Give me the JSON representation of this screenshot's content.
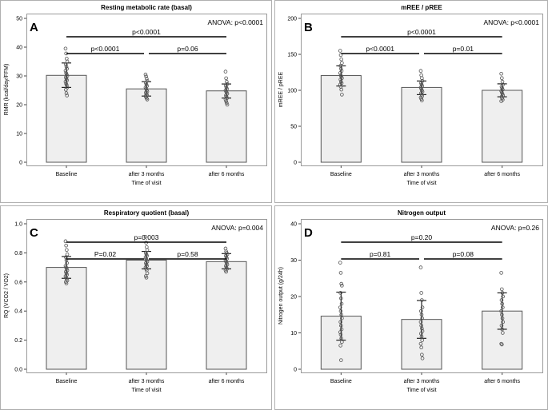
{
  "chart_data": [
    {
      "type": "bar",
      "panel_letter": "A",
      "title": "Resting metabolic rate (basal)",
      "xlabel": "Time of visit",
      "ylabel": "RMR (kcal/day/FFM)",
      "categories": [
        "Baseline",
        "after 3 months",
        "after 6 months"
      ],
      "ylim": [
        0,
        50
      ],
      "yticks": [
        0,
        10,
        20,
        30,
        40,
        50
      ],
      "ytick_labels": [
        "0",
        "10",
        "20",
        "30",
        "40",
        "50"
      ],
      "values": [
        30.2,
        25.5,
        24.8
      ],
      "error": [
        [
          26.0,
          34.5
        ],
        [
          23.0,
          28.0
        ],
        [
          22.3,
          27.2
        ]
      ],
      "points": [
        [
          39.5,
          37.8,
          36.0,
          35.0,
          34.0,
          33.2,
          32.5,
          31.8,
          31.0,
          30.5,
          30.0,
          29.5,
          29.0,
          28.5,
          28.0,
          27.3,
          26.8,
          26.0,
          25.2,
          24.0,
          23.2
        ],
        [
          30.5,
          29.8,
          29.0,
          28.3,
          27.6,
          27.0,
          26.5,
          26.0,
          25.5,
          25.0,
          24.6,
          24.2,
          23.8,
          23.4,
          23.0,
          22.6,
          22.2,
          21.8
        ],
        [
          31.5,
          29.2,
          28.0,
          27.2,
          26.6,
          26.0,
          25.5,
          25.0,
          24.6,
          24.2,
          23.8,
          23.2,
          22.8,
          22.3,
          21.8,
          21.2,
          20.6,
          20.0
        ]
      ],
      "anova": "ANOVA: p<0.0001",
      "comparisons": [
        {
          "from": 0,
          "to": 2,
          "label": "p<0.0001",
          "level": 2
        },
        {
          "from": 0,
          "to": 1,
          "label": "p<0.0001",
          "level": 1
        },
        {
          "from": 1,
          "to": 2,
          "label": "p=0.06",
          "level": 1
        }
      ]
    },
    {
      "type": "bar",
      "panel_letter": "B",
      "title": "mREE / pREE",
      "xlabel": "Time of visit",
      "ylabel": "mREE / pREE",
      "categories": [
        "Baseline",
        "after 3 months",
        "after 6 months"
      ],
      "ylim": [
        0,
        200
      ],
      "yticks": [
        0,
        50,
        100,
        150,
        200
      ],
      "ytick_labels": [
        "0",
        "50",
        "100",
        "150",
        "200"
      ],
      "values": [
        120.5,
        104.0,
        100.0
      ],
      "error": [
        [
          106.0,
          134.0
        ],
        [
          94.0,
          113.0
        ],
        [
          91.0,
          109.0
        ]
      ],
      "points": [
        [
          155.0,
          149.0,
          143.0,
          138.0,
          134.0,
          130.0,
          127.0,
          124.0,
          121.0,
          119.0,
          117.0,
          115.0,
          112.0,
          110.0,
          108.0,
          105.0,
          101.0,
          94.0
        ],
        [
          127.0,
          121.0,
          117.0,
          113.0,
          110.0,
          108.0,
          106.0,
          104.0,
          102.0,
          100.0,
          98.0,
          96.0,
          94.0,
          92.0,
          90.0,
          88.0,
          86.0
        ],
        [
          123.0,
          117.0,
          112.0,
          108.0,
          105.0,
          103.0,
          101.0,
          99.0,
          97.0,
          95.0,
          93.0,
          91.0,
          89.0,
          87.0,
          85.0
        ]
      ],
      "anova": "ANOVA: p<0.0001",
      "comparisons": [
        {
          "from": 0,
          "to": 2,
          "label": "p<0.0001",
          "level": 2
        },
        {
          "from": 0,
          "to": 1,
          "label": "p<0.0001",
          "level": 1
        },
        {
          "from": 1,
          "to": 2,
          "label": "p=0.01",
          "level": 1
        }
      ]
    },
    {
      "type": "bar",
      "panel_letter": "C",
      "title": "Respiratory quotient (basal)",
      "xlabel": "Time of visit",
      "ylabel": "RQ (VCO2 / VO2)",
      "categories": [
        "Baseline",
        "after 3 months",
        "after 6 months"
      ],
      "ylim": [
        0,
        1.0
      ],
      "yticks": [
        0,
        0.2,
        0.4,
        0.6,
        0.8,
        1.0
      ],
      "ytick_labels": [
        "0.0",
        "0.2",
        "0.4",
        "0.6",
        "0.8",
        "1.0"
      ],
      "values": [
        0.7,
        0.75,
        0.74
      ],
      "error": [
        [
          0.625,
          0.775
        ],
        [
          0.69,
          0.81
        ],
        [
          0.69,
          0.795
        ]
      ],
      "points": [
        [
          0.88,
          0.85,
          0.82,
          0.79,
          0.77,
          0.75,
          0.73,
          0.71,
          0.7,
          0.69,
          0.68,
          0.67,
          0.66,
          0.65,
          0.64,
          0.63,
          0.62,
          0.61,
          0.6,
          0.59
        ],
        [
          0.91,
          0.87,
          0.84,
          0.82,
          0.8,
          0.79,
          0.78,
          0.77,
          0.76,
          0.75,
          0.74,
          0.73,
          0.72,
          0.71,
          0.7,
          0.69,
          0.68,
          0.66,
          0.64,
          0.63
        ],
        [
          0.83,
          0.81,
          0.8,
          0.79,
          0.78,
          0.77,
          0.76,
          0.75,
          0.74,
          0.73,
          0.72,
          0.71,
          0.7,
          0.69,
          0.68,
          0.67
        ]
      ],
      "anova": "ANOVA: p=0.004",
      "comparisons": [
        {
          "from": 0,
          "to": 2,
          "label": "p=0.003",
          "level": 2
        },
        {
          "from": 0,
          "to": 1,
          "label": "P=0.02",
          "level": 1
        },
        {
          "from": 1,
          "to": 2,
          "label": "p=0.58",
          "level": 1
        }
      ]
    },
    {
      "type": "bar",
      "panel_letter": "D",
      "title": "Nitrogen output",
      "xlabel": "Time of visit",
      "ylabel": "Nitrogen output (g/24h)",
      "categories": [
        "Baseline",
        "after 3 months",
        "after 6 months"
      ],
      "ylim": [
        0,
        40
      ],
      "yticks": [
        0,
        10,
        20,
        30,
        40
      ],
      "ytick_labels": [
        "0",
        "10",
        "20",
        "30",
        "40"
      ],
      "values": [
        14.6,
        13.7,
        16.0
      ],
      "error": [
        [
          8.0,
          21.2
        ],
        [
          8.5,
          18.9
        ],
        [
          11.0,
          21.0
        ]
      ],
      "points": [
        [
          29.3,
          26.5,
          23.5,
          23.0,
          21.0,
          19.5,
          18.0,
          17.0,
          16.0,
          15.0,
          14.0,
          13.0,
          12.0,
          11.0,
          10.2,
          9.5,
          8.5,
          7.5,
          6.5,
          2.5
        ],
        [
          28.0,
          21.0,
          19.0,
          17.0,
          16.0,
          15.0,
          14.0,
          13.0,
          12.0,
          11.2,
          10.5,
          9.8,
          9.0,
          8.0,
          7.0,
          6.0,
          4.0,
          3.0
        ],
        [
          26.5,
          22.0,
          21.0,
          20.0,
          19.0,
          18.0,
          17.0,
          16.0,
          15.0,
          14.0,
          13.0,
          12.0,
          11.0,
          10.0,
          7.0,
          6.8
        ]
      ],
      "anova": "ANOVA: p=0.26",
      "comparisons": [
        {
          "from": 0,
          "to": 2,
          "label": "p=0.20",
          "level": 2
        },
        {
          "from": 0,
          "to": 1,
          "label": "p=0.81",
          "level": 1
        },
        {
          "from": 1,
          "to": 2,
          "label": "p=0.08",
          "level": 1
        }
      ]
    }
  ]
}
